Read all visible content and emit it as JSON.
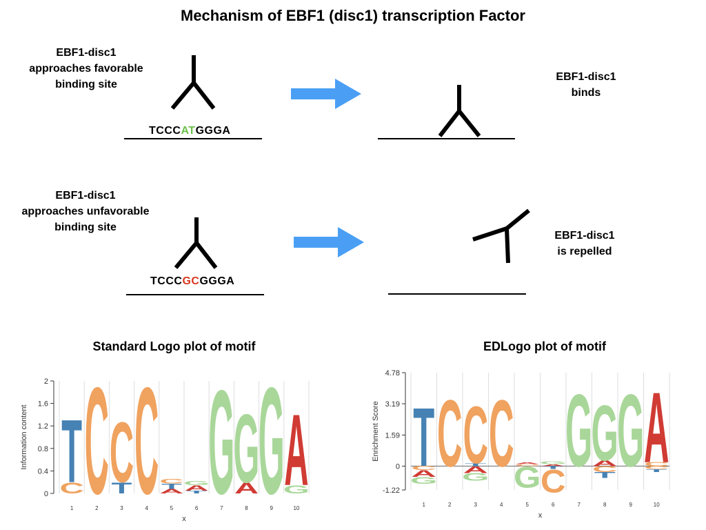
{
  "title": "Mechanism of EBF1 (disc1) transcription Factor",
  "scenario_favorable": {
    "left_caption": [
      "EBF1-disc1",
      "approaches favorable",
      "binding site"
    ],
    "sequence": {
      "prefix": "TCCC",
      "highlight": "AT",
      "suffix": "GGGA"
    },
    "right_caption": [
      "EBF1-disc1",
      "binds"
    ]
  },
  "scenario_unfavorable": {
    "left_caption": [
      "EBF1-disc1",
      "approaches unfavorable",
      "binding site"
    ],
    "sequence": {
      "prefix": "TCCC",
      "highlight": "GC",
      "suffix": "GGGA"
    },
    "right_caption": [
      "EBF1-disc1",
      "is repelled"
    ]
  },
  "colors": {
    "favorable_highlight": "#6cc04a",
    "unfavorable_highlight": "#d9381e",
    "arrow": "#4a9ff5",
    "A": "#d03b34",
    "C": "#f0a25f",
    "G": "#a9d79a",
    "T": "#4682b4"
  },
  "chart_data": [
    {
      "type": "sequence-logo",
      "title": "Standard Logo plot of motif",
      "xlabel": "x",
      "ylabel": "Information content",
      "ylim": [
        0,
        2
      ],
      "yticks": [
        "0",
        "0.4",
        "0.8",
        "1.2",
        "1.6",
        "2"
      ],
      "xticks": [
        "1",
        "2",
        "3",
        "4",
        "5",
        "6",
        "7",
        "8",
        "9",
        "10"
      ],
      "positions": [
        {
          "pos": 1,
          "letters": [
            {
              "base": "C",
              "height": 0.2
            },
            {
              "base": "T",
              "height": 1.15
            }
          ]
        },
        {
          "pos": 2,
          "letters": [
            {
              "base": "C",
              "height": 1.95
            }
          ]
        },
        {
          "pos": 3,
          "letters": [
            {
              "base": "T",
              "height": 0.2
            },
            {
              "base": "C",
              "height": 1.1
            }
          ]
        },
        {
          "pos": 4,
          "letters": [
            {
              "base": "C",
              "height": 1.95
            }
          ]
        },
        {
          "pos": 5,
          "letters": [
            {
              "base": "A",
              "height": 0.08
            },
            {
              "base": "T",
              "height": 0.1
            },
            {
              "base": "C",
              "height": 0.08
            }
          ]
        },
        {
          "pos": 6,
          "letters": [
            {
              "base": "T",
              "height": 0.05
            },
            {
              "base": "A",
              "height": 0.1
            },
            {
              "base": "G",
              "height": 0.07
            }
          ]
        },
        {
          "pos": 7,
          "letters": [
            {
              "base": "G",
              "height": 1.9
            }
          ]
        },
        {
          "pos": 8,
          "letters": [
            {
              "base": "A",
              "height": 0.2
            },
            {
              "base": "G",
              "height": 1.25
            }
          ]
        },
        {
          "pos": 9,
          "letters": [
            {
              "base": "G",
              "height": 1.95
            }
          ]
        },
        {
          "pos": 10,
          "letters": [
            {
              "base": "G",
              "height": 0.15
            },
            {
              "base": "A",
              "height": 1.3
            }
          ]
        }
      ]
    },
    {
      "type": "sequence-logo",
      "title": "EDLogo plot of motif",
      "xlabel": "x",
      "ylabel": "Enrichment Score",
      "ylim": [
        -1.22,
        4.78
      ],
      "yticks": [
        "-1.22",
        "0",
        "1.59",
        "3.19",
        "4.78"
      ],
      "xticks": [
        "1",
        "2",
        "3",
        "4",
        "5",
        "6",
        "7",
        "8",
        "9",
        "10"
      ],
      "positions": [
        {
          "pos": 1,
          "pos_letters": [
            {
              "base": "T",
              "height": 3.1
            }
          ],
          "neg_letters": [
            {
              "base": "C",
              "height": 0.2
            },
            {
              "base": "A",
              "height": 0.35
            },
            {
              "base": "G",
              "height": 0.35
            }
          ]
        },
        {
          "pos": 2,
          "pos_letters": [
            {
              "base": "C",
              "height": 3.5
            }
          ],
          "neg_letters": []
        },
        {
          "pos": 3,
          "pos_letters": [
            {
              "base": "T",
              "height": 0.15
            },
            {
              "base": "C",
              "height": 3.0
            }
          ],
          "neg_letters": [
            {
              "base": "A",
              "height": 0.35
            },
            {
              "base": "G",
              "height": 0.4
            }
          ]
        },
        {
          "pos": 4,
          "pos_letters": [
            {
              "base": "C",
              "height": 3.5
            }
          ],
          "neg_letters": []
        },
        {
          "pos": 5,
          "pos_letters": [
            {
              "base": "C",
              "height": 0.1
            },
            {
              "base": "A",
              "height": 0.1
            }
          ],
          "neg_letters": [
            {
              "base": "G",
              "height": 1.1
            }
          ]
        },
        {
          "pos": 6,
          "pos_letters": [
            {
              "base": "A",
              "height": 0.1
            },
            {
              "base": "G",
              "height": 0.15
            }
          ],
          "neg_letters": [
            {
              "base": "T",
              "height": 0.15
            },
            {
              "base": "C",
              "height": 1.2
            }
          ]
        },
        {
          "pos": 7,
          "pos_letters": [
            {
              "base": "G",
              "height": 3.8
            }
          ],
          "neg_letters": []
        },
        {
          "pos": 8,
          "pos_letters": [
            {
              "base": "A",
              "height": 0.3
            },
            {
              "base": "G",
              "height": 2.9
            }
          ],
          "neg_letters": [
            {
              "base": "C",
              "height": 0.3
            },
            {
              "base": "T",
              "height": 0.3
            }
          ]
        },
        {
          "pos": 9,
          "pos_letters": [
            {
              "base": "G",
              "height": 3.8
            }
          ],
          "neg_letters": []
        },
        {
          "pos": 10,
          "pos_letters": [
            {
              "base": "C",
              "height": 0.2
            },
            {
              "base": "A",
              "height": 3.7
            }
          ],
          "neg_letters": [
            {
              "base": "C",
              "height": 0.15
            },
            {
              "base": "T",
              "height": 0.15
            }
          ]
        }
      ]
    }
  ]
}
